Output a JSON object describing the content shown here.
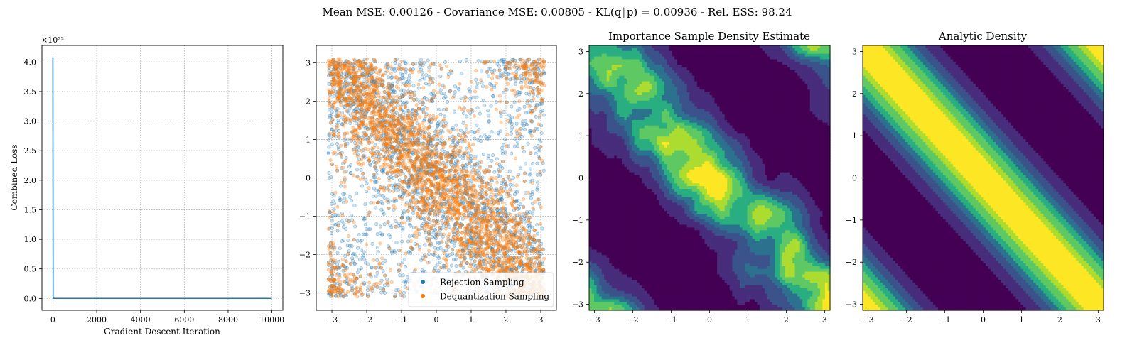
{
  "suptitle": "Mean MSE: 0.00126 - Covariance MSE: 0.00805 - KL(q‖p) = 0.00936 - Rel. ESS: 98.24",
  "chart_data": [
    {
      "type": "line",
      "title": "",
      "xlabel": "Gradient Descent Iteration",
      "ylabel": "Combined Loss",
      "offset_text": "×10²²",
      "x": [
        0,
        10,
        20,
        30,
        100,
        1000,
        2000,
        4000,
        6000,
        8000,
        10000
      ],
      "series": [
        {
          "values": [
            4.08,
            0.02,
            0.005,
            0.003,
            0.002,
            0.001,
            0.001,
            0.001,
            0.001,
            0.001,
            0.001
          ],
          "color": "#1f77b4"
        }
      ],
      "xlim": [
        -500,
        10500
      ],
      "ylim": [
        -0.2,
        4.28
      ],
      "xticks": [
        0,
        2000,
        4000,
        6000,
        8000,
        10000
      ],
      "xticklabels": [
        "0",
        "2000",
        "4000",
        "6000",
        "8000",
        "10000"
      ],
      "yticks": [
        0.0,
        0.5,
        1.0,
        1.5,
        2.0,
        2.5,
        3.0,
        3.5,
        4.0
      ],
      "yticklabels": [
        "0.0",
        "0.5",
        "1.0",
        "1.5",
        "2.0",
        "2.5",
        "3.0",
        "3.5",
        "4.0"
      ],
      "grid": true
    },
    {
      "type": "scatter",
      "title": "",
      "xlim": [
        -3.45,
        3.45
      ],
      "ylim": [
        -3.45,
        3.45
      ],
      "xticks": [
        -3,
        -2,
        -1,
        0,
        1,
        2,
        3
      ],
      "xticklabels": [
        "−3",
        "−2",
        "−1",
        "0",
        "1",
        "2",
        "3"
      ],
      "yticks": [
        -3,
        -2,
        -1,
        0,
        1,
        2,
        3
      ],
      "yticklabels": [
        "−3",
        "−2",
        "−1",
        "0",
        "1",
        "2",
        "3"
      ],
      "grid": true,
      "legend_position": "lower-right",
      "series": [
        {
          "name": "Rejection Sampling",
          "color": "#1f77b4",
          "distribution": "uniform on [-3.14, 3.14]², weighted toward bands x+y≈±π",
          "approx_count": 3000
        },
        {
          "name": "Dequantization Sampling",
          "color": "#ff7f0e",
          "distribution": "concentrated along bands x+y≈±π",
          "approx_count": 3000
        }
      ]
    },
    {
      "type": "heatmap",
      "title": "Importance Sample Density Estimate",
      "xlim": [
        -3.14159,
        3.14159
      ],
      "ylim": [
        -3.14159,
        3.14159
      ],
      "xticks": [
        -3,
        -2,
        -1,
        0,
        1,
        2,
        3
      ],
      "xticklabels": [
        "−3",
        "−2",
        "−1",
        "0",
        "1",
        "2",
        "3"
      ],
      "yticks": [
        -3,
        -2,
        -1,
        0,
        1,
        2,
        3
      ],
      "yticklabels": [
        "−3",
        "−2",
        "−1",
        "0",
        "1",
        "2",
        "3"
      ],
      "colormap": [
        "#440154",
        "#472d7b",
        "#3b528b",
        "#2c728e",
        "#21918c",
        "#28ae80",
        "#5ec962",
        "#addc30",
        "#fde725"
      ],
      "density": "peaks along x+y≈±π, noisy estimate",
      "levels": 8
    },
    {
      "type": "heatmap",
      "title": "Analytic Density",
      "xlim": [
        -3.14159,
        3.14159
      ],
      "ylim": [
        -3.14159,
        3.14159
      ],
      "xticks": [
        -3,
        -2,
        -1,
        0,
        1,
        2,
        3
      ],
      "xticklabels": [
        "−3",
        "−2",
        "−1",
        "0",
        "1",
        "2",
        "3"
      ],
      "yticks": [
        -3,
        -2,
        -1,
        0,
        1,
        2,
        3
      ],
      "yticklabels": [
        "−3",
        "−2",
        "−1",
        "0",
        "1",
        "2",
        "3"
      ],
      "colormap": [
        "#440154",
        "#472d7b",
        "#3b528b",
        "#2c728e",
        "#21918c",
        "#28ae80",
        "#5ec962",
        "#addc30",
        "#fde725"
      ],
      "density": "exp(cos(x+y)) style bands, maxima at x+y=±π",
      "levels": 8
    }
  ]
}
